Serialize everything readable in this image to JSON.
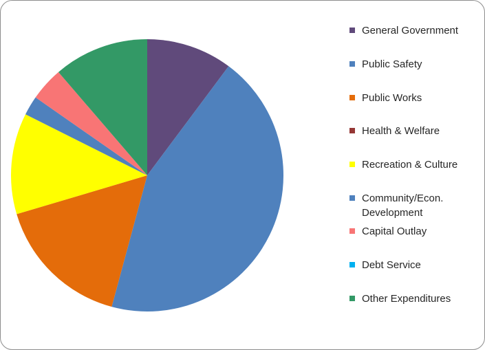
{
  "chart_data": {
    "type": "pie",
    "title": "",
    "start_angle_deg": 0,
    "direction": "clockwise",
    "categories": [
      "General Government",
      "Public Safety",
      "Public Works",
      "Health & Welfare",
      "Recreation & Culture",
      "Community/Econ. Development",
      "Capital Outlay",
      "Debt Service",
      "Other Expenditures"
    ],
    "values": [
      10.2,
      44.0,
      16.2,
      0.0,
      12.0,
      2.3,
      4.0,
      0.0,
      11.3
    ],
    "colors": [
      "#604a7b",
      "#4f81bd",
      "#e46c0a",
      "#953735",
      "#ffff00",
      "#4f81bd",
      "#f87575",
      "#00b0f0",
      "#339966"
    ],
    "legend_position": "right"
  }
}
